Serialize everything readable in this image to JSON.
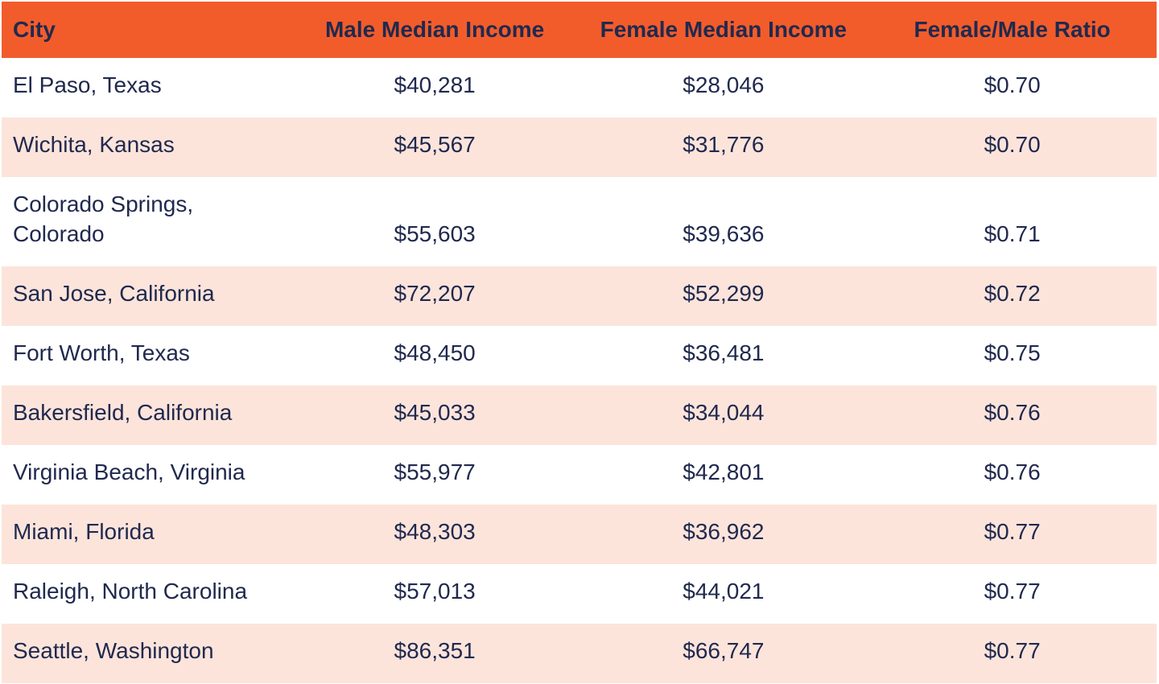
{
  "colors": {
    "header_bg": "#F25C2B",
    "row_alt_bg": "#FCE4DB",
    "text": "#20294E"
  },
  "table": {
    "columns": {
      "city": "City",
      "male": "Male Median Income",
      "female": "Female Median Income",
      "ratio": "Female/Male Ratio"
    },
    "rows": [
      {
        "city": "El Paso, Texas",
        "male": "$40,281",
        "female": "$28,046",
        "ratio": "$0.70"
      },
      {
        "city": "Wichita, Kansas",
        "male": "$45,567",
        "female": "$31,776",
        "ratio": "$0.70"
      },
      {
        "city": "Colorado Springs, Colorado",
        "male": "$55,603",
        "female": "$39,636",
        "ratio": "$0.71"
      },
      {
        "city": "San Jose, California",
        "male": "$72,207",
        "female": "$52,299",
        "ratio": "$0.72"
      },
      {
        "city": "Fort Worth, Texas",
        "male": "$48,450",
        "female": "$36,481",
        "ratio": "$0.75"
      },
      {
        "city": "Bakersfield, California",
        "male": "$45,033",
        "female": "$34,044",
        "ratio": "$0.76"
      },
      {
        "city": "Virginia Beach, Virginia",
        "male": "$55,977",
        "female": "$42,801",
        "ratio": "$0.76"
      },
      {
        "city": "Miami, Florida",
        "male": "$48,303",
        "female": "$36,962",
        "ratio": "$0.77"
      },
      {
        "city": "Raleigh, North Carolina",
        "male": "$57,013",
        "female": "$44,021",
        "ratio": "$0.77"
      },
      {
        "city": "Seattle, Washington",
        "male": "$86,351",
        "female": "$66,747",
        "ratio": "$0.77"
      }
    ]
  },
  "chart_data": {
    "type": "table",
    "title": "",
    "columns": [
      "City",
      "Male Median Income",
      "Female Median Income",
      "Female/Male Ratio"
    ],
    "rows": [
      [
        "El Paso, Texas",
        40281,
        28046,
        0.7
      ],
      [
        "Wichita, Kansas",
        45567,
        31776,
        0.7
      ],
      [
        "Colorado Springs, Colorado",
        55603,
        39636,
        0.71
      ],
      [
        "San Jose, California",
        72207,
        52299,
        0.72
      ],
      [
        "Fort Worth, Texas",
        48450,
        36481,
        0.75
      ],
      [
        "Bakersfield, California",
        45033,
        34044,
        0.76
      ],
      [
        "Virginia Beach, Virginia",
        55977,
        42801,
        0.76
      ],
      [
        "Miami, Florida",
        48303,
        36962,
        0.77
      ],
      [
        "Raleigh, North Carolina",
        57013,
        44021,
        0.77
      ],
      [
        "Seattle, Washington",
        86351,
        66747,
        0.77
      ]
    ],
    "layout_hints": {
      "header_background": "#F25C2B",
      "alternating_row_background": "#FCE4DB",
      "text_color": "#20294E",
      "value_format": "currency"
    }
  }
}
